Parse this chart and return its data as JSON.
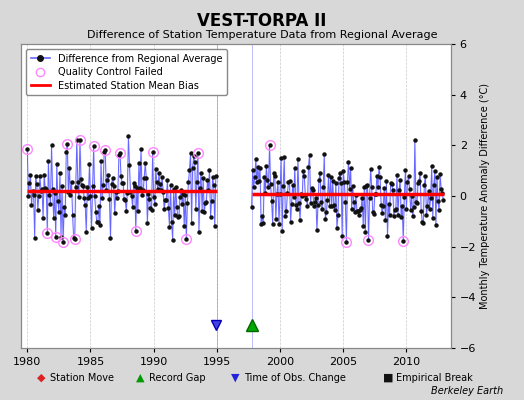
{
  "title": "VEST-TORPA II",
  "subtitle": "Difference of Station Temperature Data from Regional Average",
  "ylabel_right": "Monthly Temperature Anomaly Difference (°C)",
  "xlim": [
    1979.5,
    2013.5
  ],
  "ylim": [
    -6,
    6
  ],
  "yticks": [
    -6,
    -4,
    -2,
    0,
    2,
    4,
    6
  ],
  "xticks": [
    1980,
    1985,
    1990,
    1995,
    2000,
    2005,
    2010
  ],
  "seg1_start": 1980.0,
  "seg1_end": 1995.0,
  "seg2_start": 1997.75,
  "seg2_end": 2013.0,
  "bias1": 0.18,
  "bias2": 0.08,
  "gap_line_x": 1995.0,
  "gap_line_x2": 1997.75,
  "record_gap_x": 1997.75,
  "obs_change_x": 1994.92,
  "background_color": "#d8d8d8",
  "plot_bg_color": "#ffffff",
  "line_color": "#6666ff",
  "fill_color": "#ccccff",
  "bias_color": "#ff0000",
  "qc_color": "#ff88ff",
  "marker_color": "#111111",
  "grid_color": "#bbbbbb",
  "watermark": "Berkeley Earth",
  "seed1": 7,
  "seed2": 13
}
